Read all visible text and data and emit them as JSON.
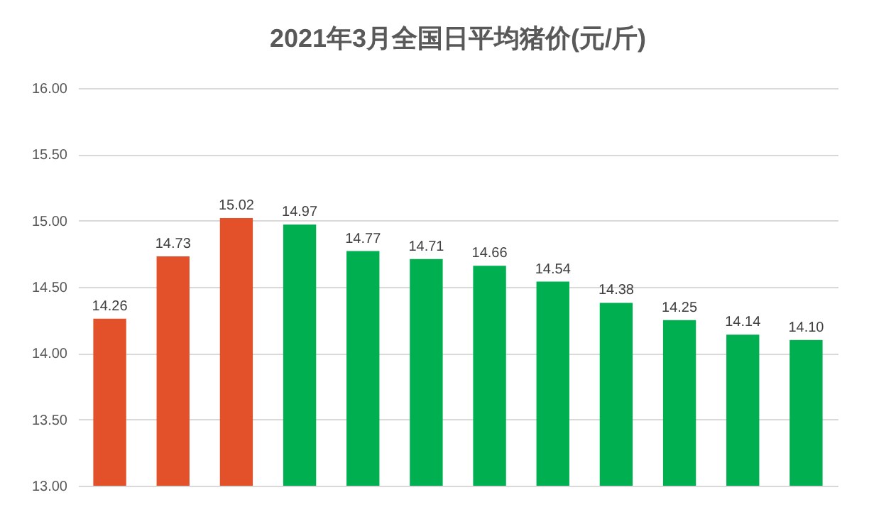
{
  "chart_data": {
    "type": "bar",
    "title": "2021年3月全国日平均猪价(元/斤)",
    "categories": [
      null,
      null,
      null,
      null,
      null,
      null,
      null,
      null,
      null,
      null,
      null,
      null
    ],
    "values": [
      14.26,
      14.73,
      15.02,
      14.97,
      14.77,
      14.71,
      14.66,
      14.54,
      14.38,
      14.25,
      14.14,
      14.1
    ],
    "colors": [
      "#e2512a",
      "#e2512a",
      "#e2512a",
      "#00b050",
      "#00b050",
      "#00b050",
      "#00b050",
      "#00b050",
      "#00b050",
      "#00b050",
      "#00b050",
      "#00b050"
    ],
    "ylim": [
      13,
      16
    ],
    "yticks": [
      {
        "value": 13,
        "label": "13.00"
      },
      {
        "value": 13.5,
        "label": "13.50"
      },
      {
        "value": 14,
        "label": "14.00"
      },
      {
        "value": 14.5,
        "label": "14.50"
      },
      {
        "value": 15,
        "label": "15.00"
      },
      {
        "value": 15.5,
        "label": "15.50"
      },
      {
        "value": 16,
        "label": "16.00"
      }
    ],
    "value_labels": [
      "14.26",
      "14.73",
      "15.02",
      "14.97",
      "14.77",
      "14.71",
      "14.66",
      "14.54",
      "14.38",
      "14.25",
      "14.14",
      "14.10"
    ],
    "grid": "y"
  }
}
